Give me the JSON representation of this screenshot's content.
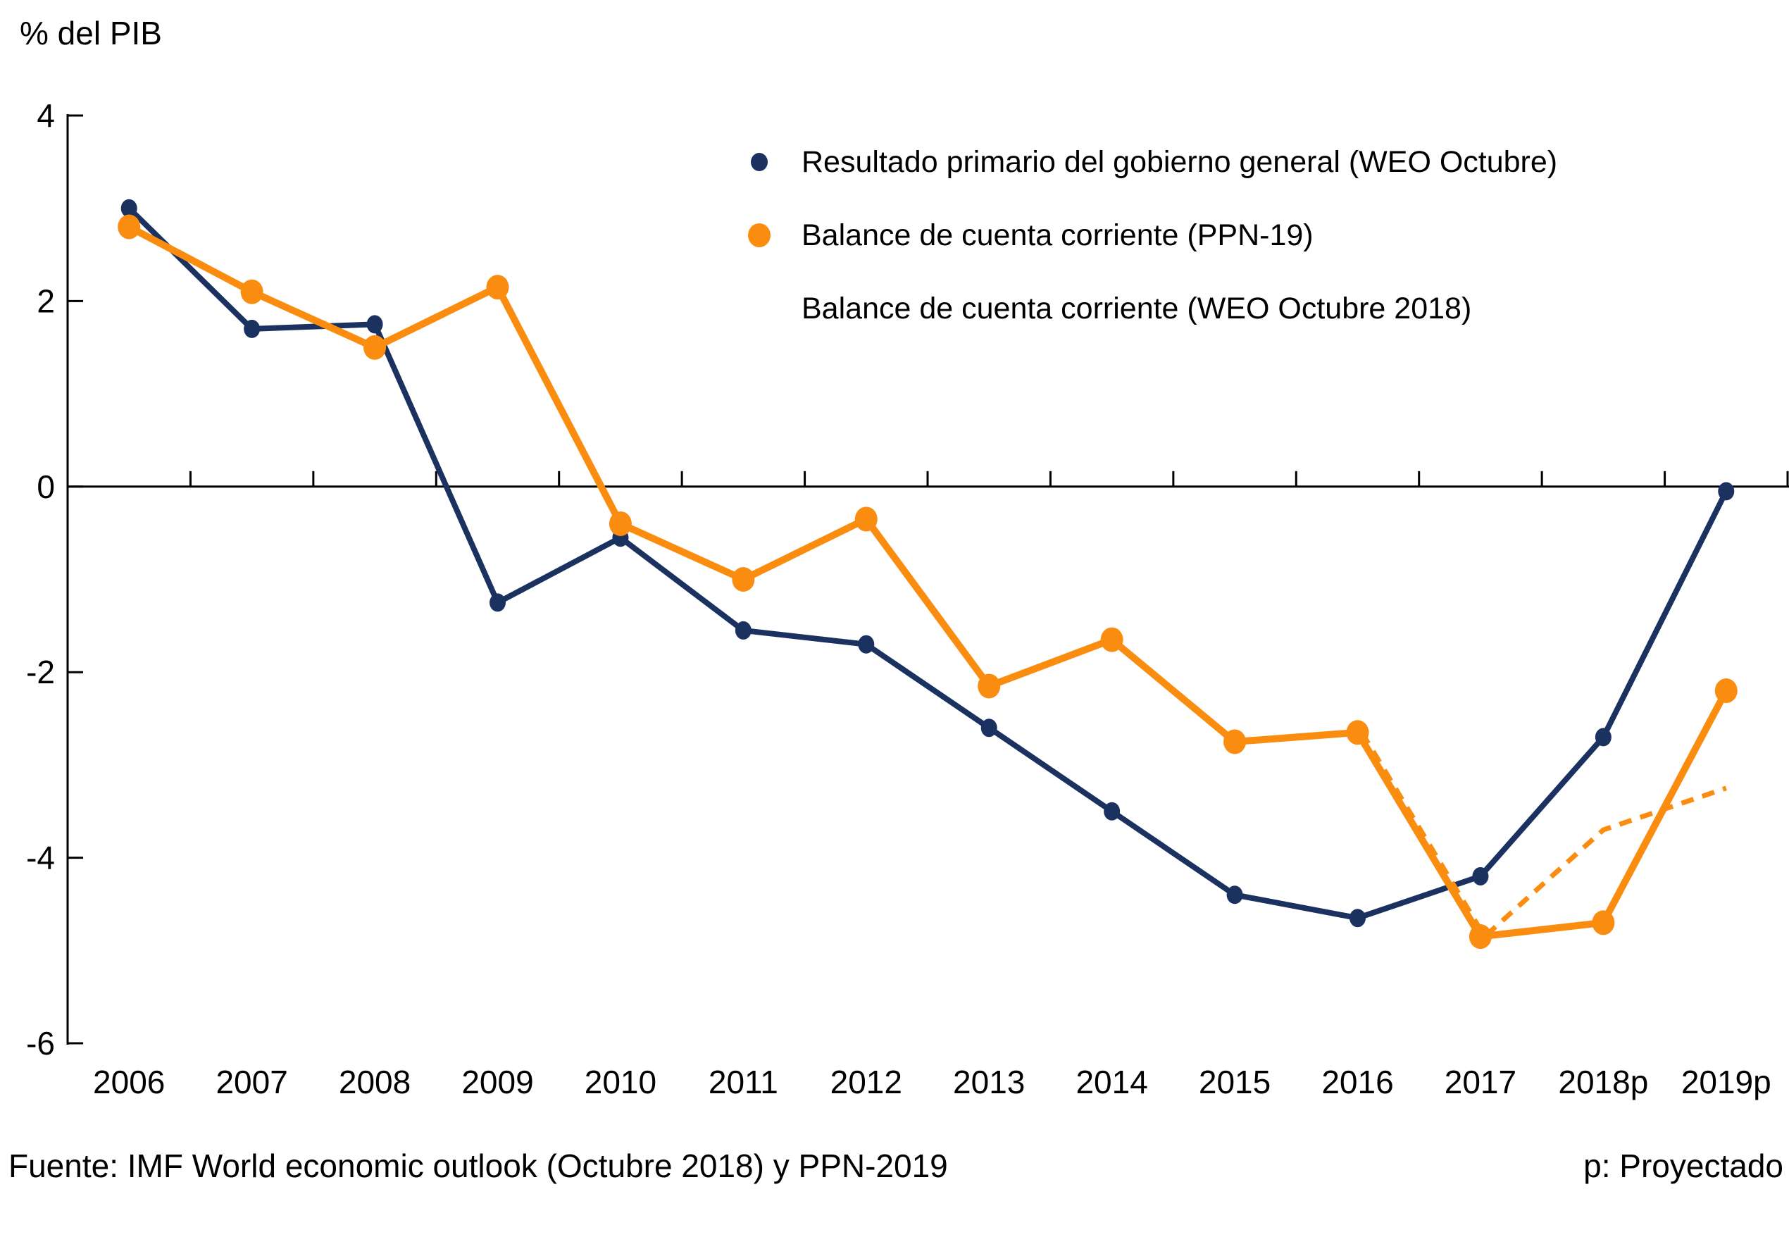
{
  "title": "% del PIB",
  "footer": {
    "source": "Fuente: IMF World economic outlook (Octubre 2018) y PPN-2019",
    "note": "p: Proyectado"
  },
  "colors": {
    "navy": "#1b3261",
    "orange": "#fa8c0f",
    "axis": "#000000",
    "text": "#000000",
    "background": "#ffffff"
  },
  "chart_data": {
    "type": "line",
    "title": "% del PIB",
    "ylabel": "% del PIB",
    "xlabel": "",
    "categories": [
      "2006",
      "2007",
      "2008",
      "2009",
      "2010",
      "2011",
      "2012",
      "2013",
      "2014",
      "2015",
      "2016",
      "2017",
      "2018p",
      "2019p"
    ],
    "series": [
      {
        "name": "Resultado primario del gobierno general (WEO Octubre)",
        "color": "#1b3261",
        "style": "solid",
        "marker": "circle",
        "values": [
          3.0,
          1.7,
          1.75,
          -1.25,
          -0.55,
          -1.55,
          -1.7,
          -2.6,
          -3.5,
          -4.4,
          -4.65,
          -4.2,
          -2.7,
          -0.05
        ]
      },
      {
        "name": "Balance de cuenta corriente (PPN-19)",
        "color": "#fa8c0f",
        "style": "solid",
        "marker": "circle",
        "values": [
          2.8,
          2.1,
          1.5,
          2.15,
          -0.4,
          -1.0,
          -0.35,
          -2.15,
          -1.65,
          -2.75,
          -2.65,
          -4.85,
          -4.7,
          -2.2
        ]
      },
      {
        "name": "Balance de cuenta corriente (WEO Octubre 2018)",
        "color": "#fa8c0f",
        "style": "dashed",
        "marker": "none",
        "values": [
          null,
          null,
          null,
          null,
          null,
          null,
          null,
          null,
          null,
          null,
          -2.65,
          -4.85,
          -3.7,
          -3.25
        ]
      }
    ],
    "ylim": [
      -6,
      4
    ],
    "yticks": [
      4,
      2,
      0,
      -2,
      -4,
      -6
    ],
    "grid": false,
    "zero_line": true,
    "legend_position": "top-right-inside"
  }
}
